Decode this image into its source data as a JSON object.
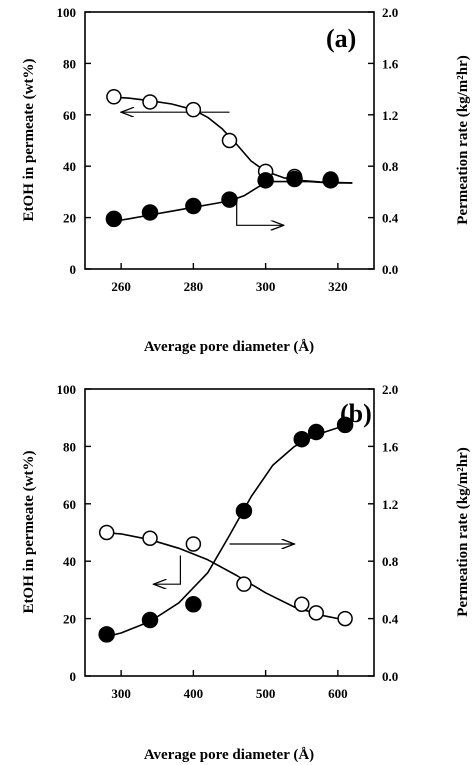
{
  "chart_data": [
    {
      "type": "scatter",
      "panel_label": "(a)",
      "xlabel": "Average pore diameter (Å)",
      "ylabel": "EtOH in permeate (wt%)",
      "y2label": "Permeation rate (kg/m²hr)",
      "xlim": [
        250,
        330
      ],
      "ylim": [
        0,
        100
      ],
      "y2lim": [
        0.0,
        2.0
      ],
      "x_ticks": [
        260,
        280,
        300,
        320
      ],
      "y_ticks": [
        0,
        20,
        40,
        60,
        80,
        100
      ],
      "y2_ticks": [
        "0.0",
        "0.4",
        "0.8",
        "1.2",
        "1.6",
        "2.0"
      ],
      "grid": false,
      "series": [
        {
          "marker": "open-circle",
          "axis": "left",
          "x": [
            258,
            268,
            280,
            290,
            300,
            308,
            318
          ],
          "y": [
            67,
            65,
            62,
            50,
            38,
            36,
            35
          ],
          "trend_x": [
            256,
            262,
            268,
            274,
            280,
            284,
            288,
            292,
            296,
            300,
            305,
            310,
            315,
            320,
            324
          ],
          "trend_y": [
            67,
            66.5,
            65.5,
            64.2,
            62,
            59,
            54.5,
            48.5,
            42,
            38,
            35.5,
            34.4,
            33.9,
            33.6,
            33.5
          ]
        },
        {
          "marker": "filled-circle",
          "axis": "right",
          "x": [
            258,
            268,
            280,
            290,
            300,
            308,
            318
          ],
          "y": [
            0.39,
            0.44,
            0.49,
            0.54,
            0.69,
            0.7,
            0.69
          ],
          "trend_x": [
            256,
            262,
            268,
            274,
            280,
            286,
            290,
            294,
            298,
            302,
            306,
            312,
            318,
            324
          ],
          "trend_y": [
            0.36,
            0.39,
            0.42,
            0.45,
            0.48,
            0.51,
            0.53,
            0.57,
            0.64,
            0.68,
            0.68,
            0.68,
            0.67,
            0.67
          ]
        }
      ],
      "annotations": [
        {
          "type": "arrow",
          "direction": "left",
          "stem": [
            [
              290,
              61
            ],
            [
              280,
              61
            ],
            [
              260,
              61
            ]
          ]
        },
        {
          "type": "arrow",
          "direction": "right",
          "stem": [
            [
              292,
              0.56
            ],
            [
              292,
              0.34
            ],
            [
              305,
              0.34
            ]
          ]
        }
      ]
    },
    {
      "type": "scatter",
      "panel_label": "(b)",
      "xlabel": "Average pore diameter (Å)",
      "ylabel": "EtOH in permeate (wt%)",
      "y2label": "Permeation rate (kg/m²hr)",
      "xlim": [
        250,
        650
      ],
      "ylim": [
        0,
        100
      ],
      "y2lim": [
        0.0,
        2.0
      ],
      "x_ticks": [
        300,
        400,
        500,
        600
      ],
      "y_ticks": [
        0,
        20,
        40,
        60,
        80,
        100
      ],
      "y2_ticks": [
        "0.0",
        "0.4",
        "0.8",
        "1.2",
        "1.6",
        "2.0"
      ],
      "grid": false,
      "series": [
        {
          "marker": "open-circle",
          "axis": "left",
          "x": [
            280,
            340,
            400,
            470,
            550,
            570,
            610
          ],
          "y": [
            50,
            48,
            46,
            32,
            25,
            22,
            20
          ],
          "trend_x": [
            275,
            300,
            340,
            380,
            420,
            460,
            500,
            540,
            580,
            610
          ],
          "trend_y": [
            50,
            49.5,
            47.5,
            44.5,
            40.5,
            35,
            29,
            24,
            21,
            19.5
          ]
        },
        {
          "marker": "filled-circle",
          "axis": "right",
          "x": [
            280,
            340,
            400,
            470,
            550,
            570,
            610
          ],
          "y": [
            0.29,
            0.39,
            0.5,
            1.15,
            1.65,
            1.7,
            1.75
          ],
          "trend_x": [
            275,
            300,
            340,
            380,
            420,
            450,
            480,
            510,
            540,
            570,
            600,
            615
          ],
          "trend_y": [
            0.27,
            0.3,
            0.38,
            0.51,
            0.72,
            0.98,
            1.25,
            1.47,
            1.6,
            1.68,
            1.73,
            1.75
          ]
        }
      ],
      "annotations": [
        {
          "type": "arrow",
          "direction": "left",
          "stem": [
            [
              382,
              42
            ],
            [
              382,
              32
            ],
            [
              345,
              32
            ]
          ]
        },
        {
          "type": "arrow",
          "direction": "right",
          "stem": [
            [
              450,
              0.92
            ],
            [
              450,
              0.92
            ],
            [
              540,
              0.92
            ]
          ]
        }
      ]
    }
  ]
}
